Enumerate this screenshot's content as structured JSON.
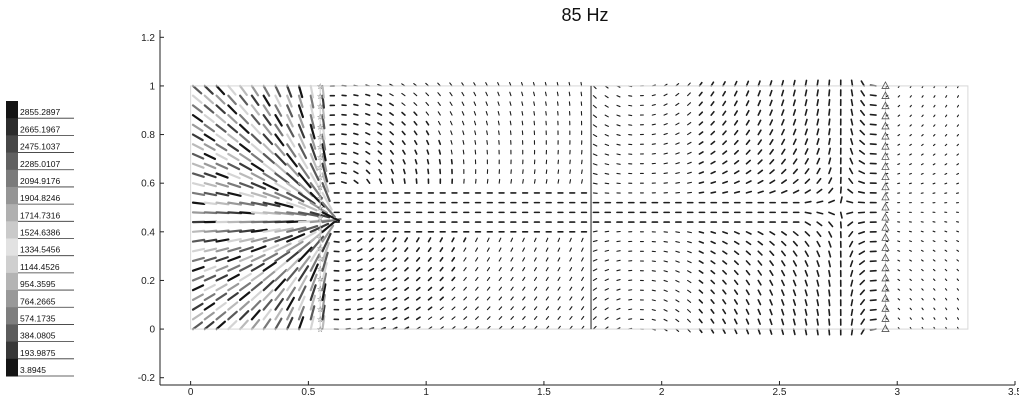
{
  "chart_data": {
    "type": "quiver",
    "title": "85 Hz",
    "xlabel": "",
    "ylabel": "",
    "xlim": [
      -0.13,
      3.5
    ],
    "ylim": [
      -0.23,
      1.23
    ],
    "xticks": [
      0,
      0.5,
      1,
      1.5,
      2,
      2.5,
      3,
      3.5
    ],
    "xtick_labels": [
      "0",
      "0.5",
      "1",
      "1.5",
      "2",
      "2.5",
      "3",
      "3.5"
    ],
    "yticks": [
      -0.2,
      0,
      0.2,
      0.4,
      0.6,
      0.8,
      1,
      1.2
    ],
    "ytick_labels": [
      "-0.2",
      "0",
      "0.2",
      "0.4",
      "0.6",
      "0.8",
      "1",
      "1.2"
    ],
    "grid": false,
    "domain_box": {
      "x": [
        0,
        3.3
      ],
      "y": [
        0,
        1
      ]
    },
    "source_line": {
      "x": 0.55,
      "y": [
        0,
        1
      ],
      "marker": "star"
    },
    "receiver_line": {
      "x": 2.95,
      "y": [
        0,
        1
      ],
      "marker": "triangle"
    },
    "partition_x": 1.7,
    "colorbar": {
      "placement": "left",
      "labels": [
        "2855.2897",
        "2665.1967",
        "2475.1037",
        "2285.0107",
        "2094.9176",
        "1904.8246",
        "1714.7316",
        "1524.6386",
        "1334.5456",
        "1144.4526",
        "954.3595",
        "764.2665",
        "574.1735",
        "384.0805",
        "193.9875",
        "3.8945"
      ],
      "colors": [
        "#141414",
        "#2c2c2c",
        "#474747",
        "#616161",
        "#7b7b7b",
        "#959595",
        "#b0b0b0",
        "#cacaca",
        "#e2e2e2",
        "#cfcfcf",
        "#b4b4b4",
        "#999999",
        "#7e7e7e",
        "#5c5c5c",
        "#383838",
        "#141414"
      ]
    }
  }
}
